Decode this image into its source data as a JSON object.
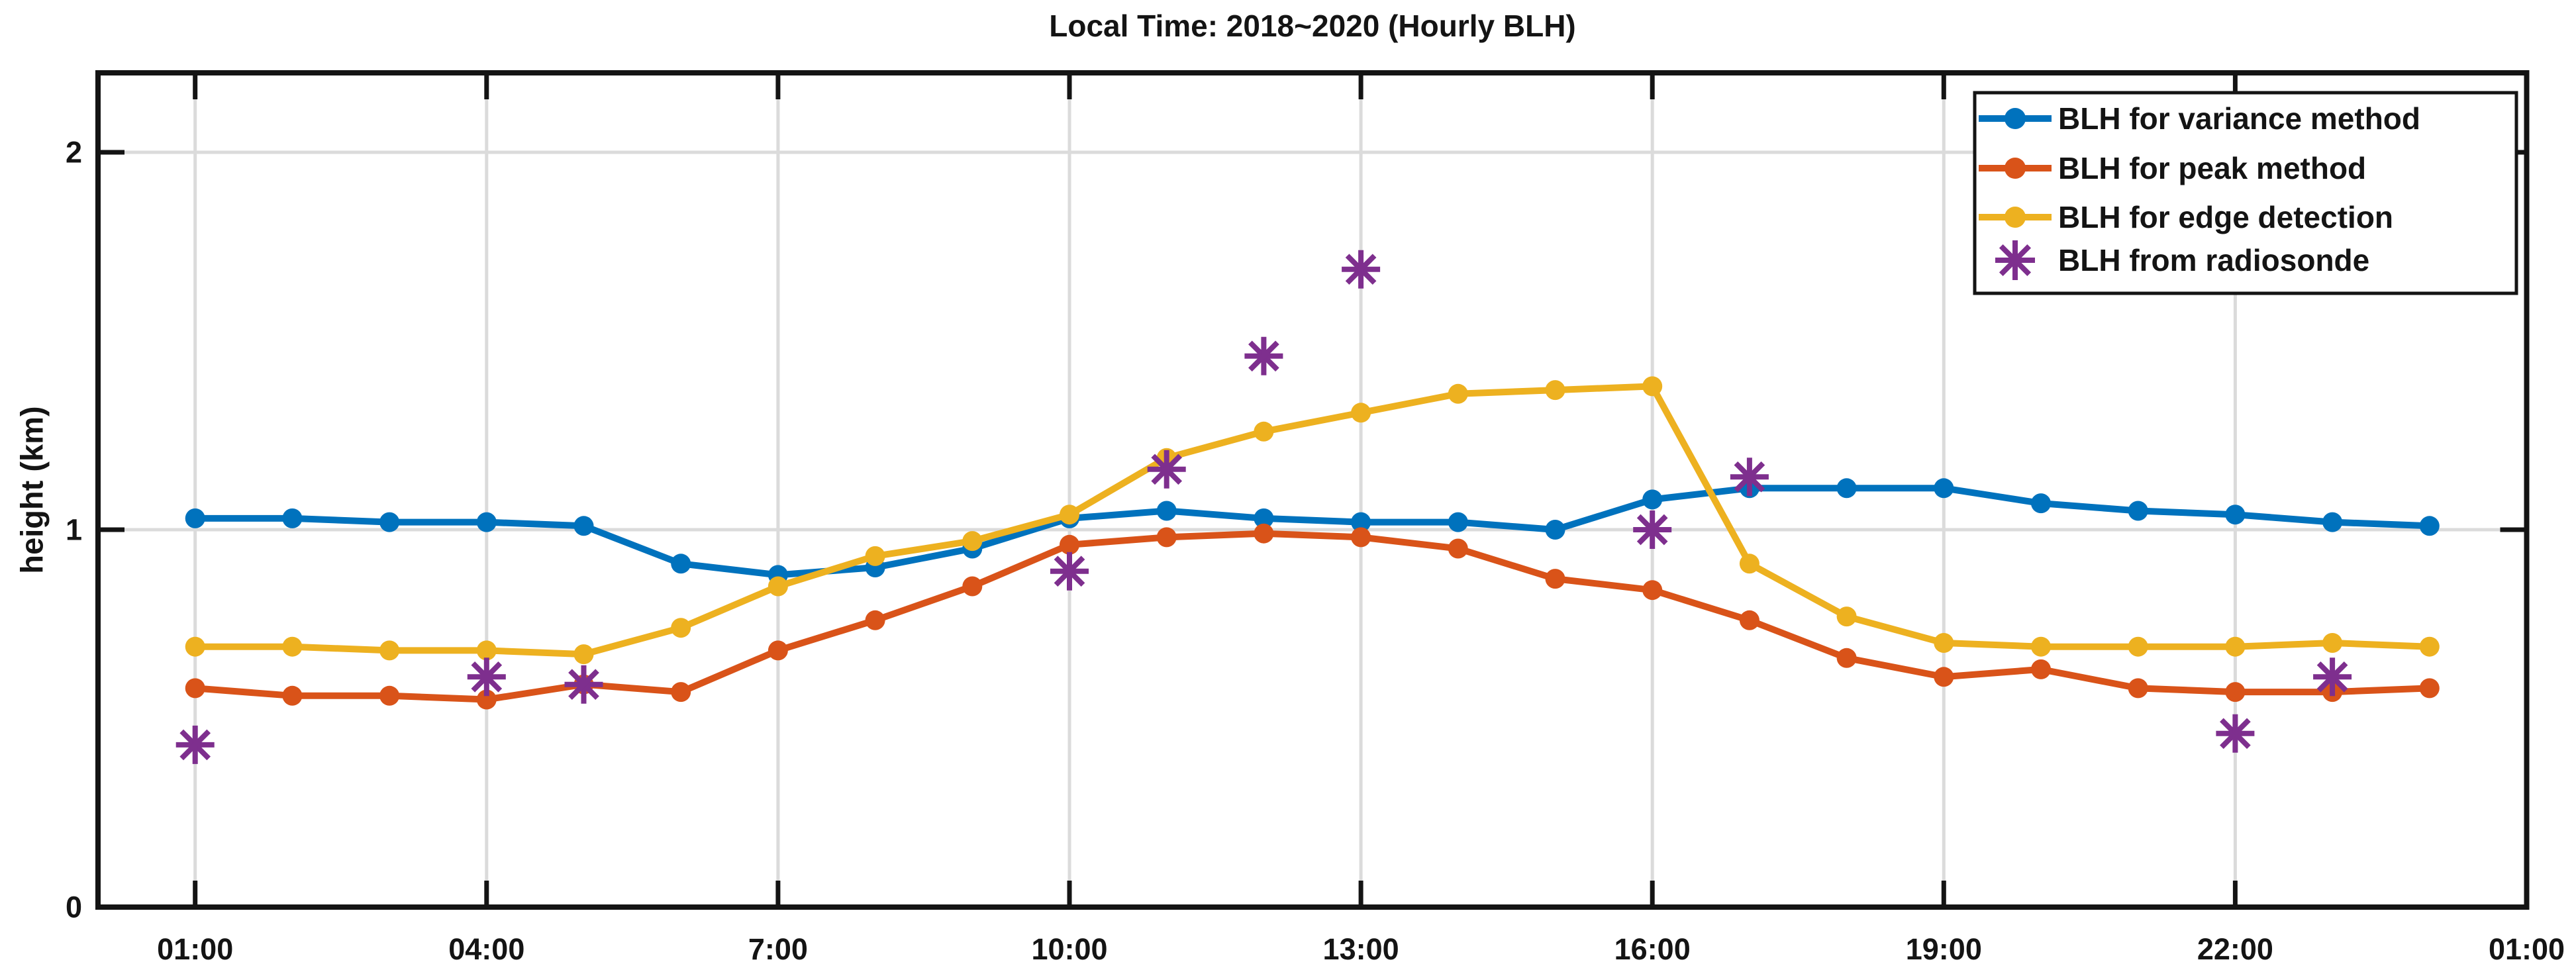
{
  "figure": {
    "background": "#ffffff"
  },
  "chart_data": {
    "type": "line",
    "title": "Local Time: 2018~2020 (Hourly BLH)",
    "xlabel": "",
    "ylabel": "height (km)",
    "xlim_hours": [
      0,
      25
    ],
    "ylim_km": [
      0,
      2.21
    ],
    "grid": true,
    "axis_color": "#141414",
    "grid_color": "#DBDBDB",
    "xticks": [
      {
        "hour": 1,
        "label": "01:00"
      },
      {
        "hour": 4,
        "label": "04:00"
      },
      {
        "hour": 7,
        "label": "7:00"
      },
      {
        "hour": 10,
        "label": "10:00"
      },
      {
        "hour": 13,
        "label": "13:00"
      },
      {
        "hour": 16,
        "label": "16:00"
      },
      {
        "hour": 19,
        "label": "19:00"
      },
      {
        "hour": 22,
        "label": "22:00"
      },
      {
        "hour": 25,
        "label": "01:00"
      }
    ],
    "yticks": [
      {
        "value": 0,
        "label": "0"
      },
      {
        "value": 1,
        "label": "1"
      },
      {
        "value": 2,
        "label": "2"
      }
    ],
    "legend": {
      "position": "top-right",
      "background": "#ffffff",
      "border_color": "#141414"
    },
    "series": [
      {
        "name": "BLH for variance method",
        "kind": "line",
        "color": "#0072BD",
        "marker": "circle",
        "hours": [
          1,
          2,
          3,
          4,
          5,
          6,
          7,
          8,
          9,
          10,
          11,
          12,
          13,
          14,
          15,
          16,
          17,
          18,
          19,
          20,
          21,
          22,
          23,
          24
        ],
        "values_km": [
          1.03,
          1.03,
          1.02,
          1.02,
          1.01,
          0.91,
          0.88,
          0.9,
          0.95,
          1.03,
          1.05,
          1.03,
          1.02,
          1.02,
          1.0,
          1.08,
          1.11,
          1.11,
          1.11,
          1.07,
          1.05,
          1.04,
          1.02,
          1.01
        ]
      },
      {
        "name": "BLH for peak method",
        "kind": "line",
        "color": "#D95319",
        "marker": "circle",
        "hours": [
          1,
          2,
          3,
          4,
          5,
          6,
          7,
          8,
          9,
          10,
          11,
          12,
          13,
          14,
          15,
          16,
          17,
          18,
          19,
          20,
          21,
          22,
          23,
          24
        ],
        "values_km": [
          0.58,
          0.56,
          0.56,
          0.55,
          0.59,
          0.57,
          0.68,
          0.76,
          0.85,
          0.96,
          0.98,
          0.99,
          0.98,
          0.95,
          0.87,
          0.84,
          0.76,
          0.66,
          0.61,
          0.63,
          0.58,
          0.57,
          0.57,
          0.58
        ]
      },
      {
        "name": "BLH for edge detection",
        "kind": "line",
        "color": "#EDB120",
        "marker": "circle",
        "hours": [
          1,
          2,
          3,
          4,
          5,
          6,
          7,
          8,
          9,
          10,
          11,
          12,
          13,
          14,
          15,
          16,
          17,
          18,
          19,
          20,
          21,
          22,
          23,
          24
        ],
        "values_km": [
          0.69,
          0.69,
          0.68,
          0.68,
          0.67,
          0.74,
          0.85,
          0.93,
          0.97,
          1.04,
          1.19,
          1.26,
          1.31,
          1.36,
          1.37,
          1.38,
          0.91,
          0.77,
          0.7,
          0.69,
          0.69,
          0.69,
          0.7,
          0.69
        ]
      },
      {
        "name": "BLH from radiosonde",
        "kind": "scatter",
        "color": "#7E2F8E",
        "marker": "asterisk",
        "points": [
          {
            "hour": 1,
            "value_km": 0.43
          },
          {
            "hour": 4,
            "value_km": 0.61
          },
          {
            "hour": 5,
            "value_km": 0.59
          },
          {
            "hour": 10,
            "value_km": 0.89
          },
          {
            "hour": 11,
            "value_km": 1.16
          },
          {
            "hour": 12,
            "value_km": 1.46
          },
          {
            "hour": 13,
            "value_km": 1.69
          },
          {
            "hour": 16,
            "value_km": 1.0
          },
          {
            "hour": 17,
            "value_km": 1.14
          },
          {
            "hour": 22,
            "value_km": 0.46
          },
          {
            "hour": 23,
            "value_km": 0.61
          }
        ]
      }
    ]
  }
}
